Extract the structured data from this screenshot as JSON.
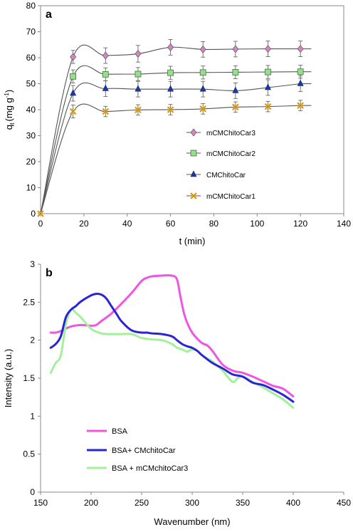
{
  "chart_data": [
    {
      "type": "line",
      "panel_label": "a",
      "xlabel": "t (min)",
      "ylabel": "q",
      "ylabel_sub": "t",
      "ylabel_unit": "(mg g",
      "ylabel_sup": "-1",
      "ylabel_close": ")",
      "xlim": [
        0,
        140
      ],
      "ylim": [
        0,
        80
      ],
      "xticks": [
        0,
        20,
        40,
        60,
        80,
        100,
        120,
        140
      ],
      "yticks": [
        0,
        10,
        20,
        30,
        40,
        50,
        60,
        70,
        80
      ],
      "x": [
        0,
        15,
        30,
        45,
        60,
        75,
        90,
        105,
        120
      ],
      "error_bars": true,
      "series": [
        {
          "name": "mCMChitoCar3",
          "marker": "diamond",
          "color": "#d884c4",
          "values": [
            0,
            60.3,
            60.8,
            61.5,
            64.0,
            63.2,
            63.3,
            63.4,
            63.4
          ],
          "errors": [
            2.0,
            2.5,
            3.0,
            3.2,
            3.0,
            3.0,
            3.0,
            3.0,
            3.0
          ]
        },
        {
          "name": "mCMChitoCar2",
          "marker": "square",
          "color": "#9adc8e",
          "values": [
            0,
            52.8,
            53.6,
            53.7,
            54.2,
            54.3,
            54.4,
            54.5,
            54.6
          ],
          "errors": [
            2.0,
            2.5,
            2.5,
            2.5,
            2.5,
            2.5,
            2.5,
            2.5,
            2.5
          ]
        },
        {
          "name": "CMChitoCar",
          "marker": "triangle",
          "color": "#1a3aa8",
          "values": [
            0,
            46.3,
            48.1,
            47.9,
            47.9,
            47.9,
            47.3,
            48.5,
            50.0
          ],
          "errors": [
            2.0,
            3.0,
            3.0,
            3.0,
            3.0,
            3.0,
            3.0,
            3.0,
            3.0
          ]
        },
        {
          "name": "mCMChitoCar1",
          "marker": "x",
          "color": "#f2b530",
          "values": [
            0,
            39.3,
            39.3,
            39.9,
            40.0,
            40.3,
            41.0,
            41.2,
            41.6
          ],
          "errors": [
            2.0,
            2.5,
            2.0,
            2.0,
            2.0,
            2.0,
            2.0,
            2.0,
            2.0
          ]
        }
      ]
    },
    {
      "type": "line",
      "panel_label": "b",
      "xlabel": "Wavenumber (nm)",
      "ylabel": "Intensity (a.u.)",
      "xlim": [
        150,
        450
      ],
      "ylim": [
        0,
        3
      ],
      "xticks": [
        150,
        200,
        250,
        300,
        350,
        400,
        450
      ],
      "yticks": [
        "0",
        "0.5",
        "1",
        "1.5",
        "2",
        "2.5",
        "3"
      ],
      "series": [
        {
          "name": "BSA",
          "color": "#ee55e0",
          "x": [
            160,
            165,
            170,
            180,
            190,
            200,
            205,
            210,
            220,
            230,
            240,
            250,
            255,
            260,
            270,
            280,
            285,
            288,
            292,
            296,
            300,
            305,
            310,
            315,
            320,
            330,
            340,
            350,
            360,
            370,
            380,
            390,
            400
          ],
          "y": [
            2.1,
            2.1,
            2.12,
            2.18,
            2.2,
            2.19,
            2.2,
            2.25,
            2.35,
            2.48,
            2.62,
            2.78,
            2.82,
            2.84,
            2.85,
            2.85,
            2.8,
            2.6,
            2.35,
            2.2,
            2.1,
            2.02,
            1.96,
            1.93,
            1.86,
            1.68,
            1.6,
            1.57,
            1.52,
            1.46,
            1.4,
            1.36,
            1.26
          ]
        },
        {
          "name": "BSA+ CMchitoCar",
          "color": "#2a24d8",
          "x": [
            160,
            165,
            170,
            175,
            180,
            185,
            190,
            200,
            205,
            210,
            215,
            220,
            225,
            230,
            240,
            250,
            255,
            260,
            270,
            280,
            285,
            290,
            295,
            300,
            305,
            310,
            320,
            330,
            340,
            350,
            360,
            370,
            380,
            390,
            400
          ],
          "y": [
            1.9,
            1.95,
            2.05,
            2.3,
            2.4,
            2.45,
            2.51,
            2.59,
            2.61,
            2.6,
            2.55,
            2.45,
            2.35,
            2.25,
            2.13,
            2.1,
            2.1,
            2.09,
            2.08,
            2.05,
            2.0,
            1.95,
            1.92,
            1.9,
            1.86,
            1.8,
            1.7,
            1.63,
            1.55,
            1.52,
            1.44,
            1.41,
            1.35,
            1.28,
            1.19
          ]
        },
        {
          "name": "BSA + mCMchitoCar3",
          "color": "#a4f09a",
          "x": [
            160,
            165,
            170,
            175,
            180,
            185,
            190,
            200,
            210,
            220,
            230,
            240,
            250,
            260,
            270,
            280,
            285,
            290,
            295,
            300,
            305,
            310,
            320,
            330,
            340,
            345,
            350,
            360,
            370,
            380,
            390,
            400
          ],
          "y": [
            1.57,
            1.7,
            1.8,
            2.2,
            2.4,
            2.36,
            2.3,
            2.15,
            2.09,
            2.08,
            2.08,
            2.08,
            2.03,
            2.01,
            2.0,
            1.95,
            1.9,
            1.88,
            1.85,
            1.88,
            1.86,
            1.8,
            1.72,
            1.6,
            1.45,
            1.5,
            1.52,
            1.45,
            1.38,
            1.3,
            1.22,
            1.11
          ]
        }
      ]
    }
  ]
}
